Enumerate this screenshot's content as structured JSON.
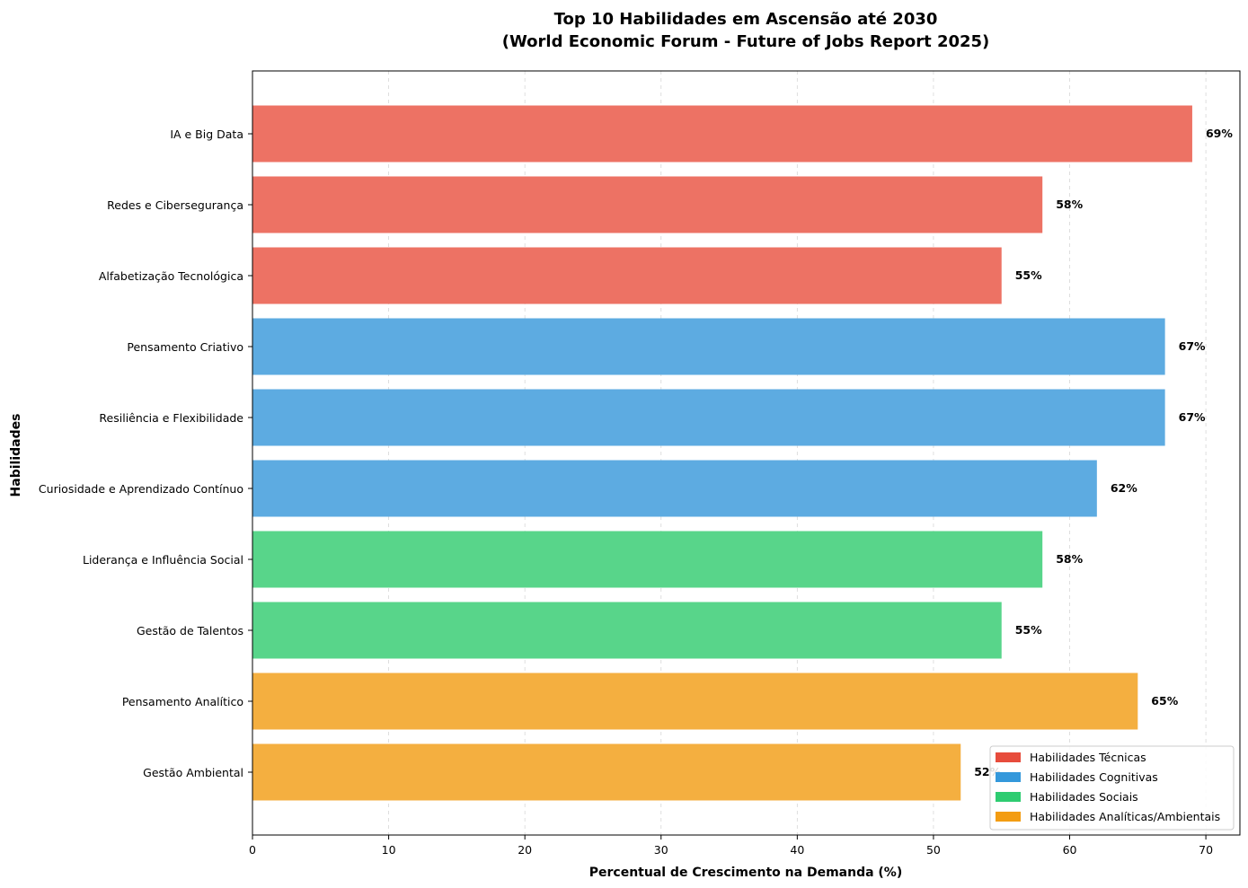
{
  "chart_data": {
    "type": "bar",
    "orientation": "horizontal",
    "title": "Top 10 Habilidades em Ascensão até 2030",
    "subtitle": "(World Economic Forum - Future of Jobs Report 2025)",
    "xlabel": "Percentual de Crescimento na Demanda (%)",
    "ylabel": "Habilidades",
    "xlim": [
      0,
      72.5
    ],
    "xticks": [
      0,
      10,
      20,
      30,
      40,
      50,
      60,
      70
    ],
    "grid": "x-dashed",
    "legend_position": "bottom-right",
    "categories": [
      "IA e Big Data",
      "Redes e Cibersegurança",
      "Alfabetização Tecnológica",
      "Pensamento Criativo",
      "Resiliência e Flexibilidade",
      "Curiosidade e Aprendizado Contínuo",
      "Liderança e Influência Social",
      "Gestão de Talentos",
      "Pensamento Analítico",
      "Gestão Ambiental"
    ],
    "values": [
      69,
      58,
      55,
      67,
      67,
      62,
      58,
      55,
      65,
      52
    ],
    "value_labels": [
      "69%",
      "58%",
      "55%",
      "67%",
      "67%",
      "62%",
      "58%",
      "55%",
      "65%",
      "52%"
    ],
    "groups": [
      0,
      0,
      0,
      1,
      1,
      1,
      2,
      2,
      3,
      3
    ],
    "legend": [
      {
        "label": "Habilidades Técnicas",
        "color": "#e74c3c"
      },
      {
        "label": "Habilidades Cognitivas",
        "color": "#3498db"
      },
      {
        "label": "Habilidades Sociais",
        "color": "#2ecc71"
      },
      {
        "label": "Habilidades Analíticas/Ambientais",
        "color": "#f39c12"
      }
    ],
    "bar_colors": [
      "#ed7264",
      "#5dabe1",
      "#58d58a",
      "#f4af40"
    ]
  }
}
